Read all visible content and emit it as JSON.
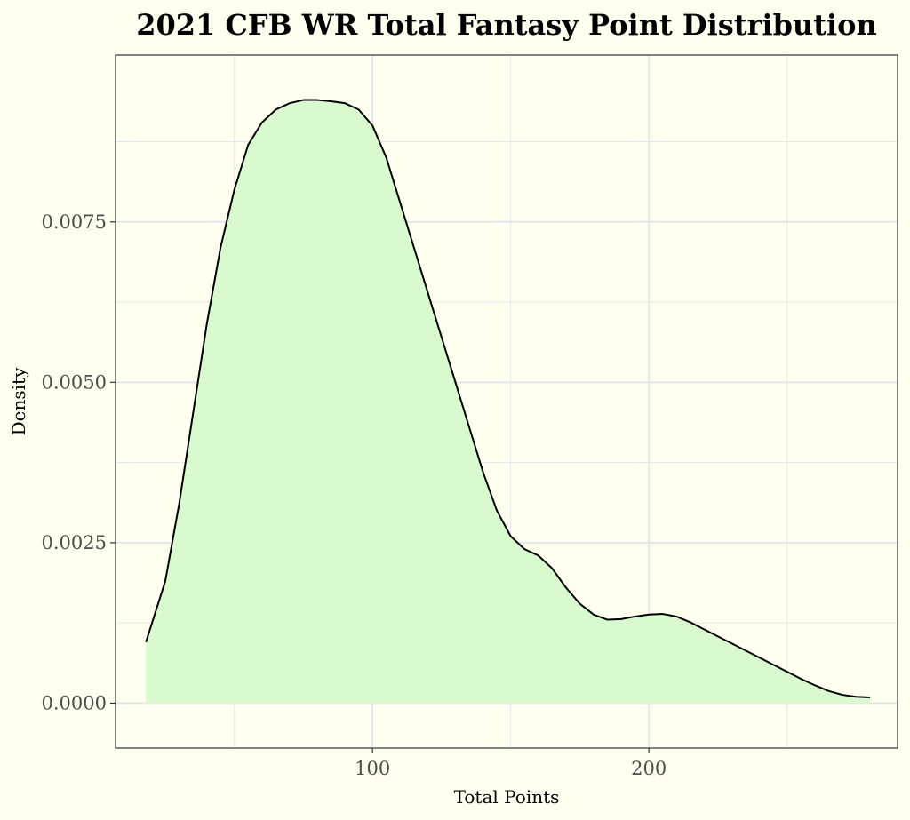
{
  "chart_data": {
    "type": "area",
    "title": "2021 CFB WR Total Fantasy Point Distribution",
    "xlabel": "Total Points",
    "ylabel": "Density",
    "xlim": [
      7,
      290
    ],
    "ylim": [
      -0.0007,
      0.0101
    ],
    "x_ticks": [
      100,
      200
    ],
    "x_tick_labels": [
      "100",
      "200"
    ],
    "x_minor_ticks": [
      50,
      150,
      250
    ],
    "y_ticks": [
      0.0,
      0.0025,
      0.005,
      0.0075
    ],
    "y_tick_labels": [
      "0.0000",
      "0.0025",
      "0.0050",
      "0.0075"
    ],
    "y_minor_ticks": [
      0.00125,
      0.00375,
      0.00625,
      0.00875
    ],
    "grid": true,
    "colors": {
      "background": "#fffff0",
      "fill": "#d9f9cf",
      "line": "#000000",
      "grid": "#e6e6ea",
      "panel_border": "#333333"
    },
    "series": [
      {
        "x": [
          18,
          25,
          30,
          35,
          40,
          45,
          50,
          55,
          60,
          65,
          70,
          75,
          80,
          85,
          90,
          95,
          100,
          105,
          110,
          115,
          120,
          125,
          130,
          135,
          140,
          145,
          150,
          155,
          160,
          165,
          170,
          175,
          180,
          185,
          190,
          195,
          200,
          205,
          210,
          215,
          220,
          225,
          230,
          235,
          240,
          245,
          250,
          255,
          260,
          265,
          270,
          275,
          280
        ],
        "y": [
          0.00095,
          0.0019,
          0.0031,
          0.0045,
          0.0059,
          0.0071,
          0.008,
          0.0087,
          0.00905,
          0.00925,
          0.00935,
          0.0094,
          0.0094,
          0.00938,
          0.00935,
          0.00925,
          0.009,
          0.0085,
          0.0078,
          0.0071,
          0.0064,
          0.0057,
          0.005,
          0.0043,
          0.0036,
          0.003,
          0.0026,
          0.0024,
          0.0023,
          0.0021,
          0.0018,
          0.00155,
          0.00138,
          0.0013,
          0.00131,
          0.00135,
          0.00138,
          0.00139,
          0.00135,
          0.00126,
          0.00115,
          0.00104,
          0.00093,
          0.00082,
          0.00071,
          0.0006,
          0.00049,
          0.00038,
          0.00028,
          0.00019,
          0.00013,
          0.0001,
          9e-05
        ]
      }
    ]
  }
}
